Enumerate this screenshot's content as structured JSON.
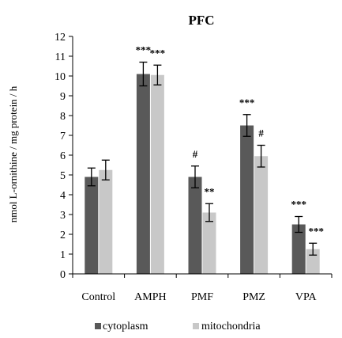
{
  "chart_data": {
    "type": "bar",
    "title": "PFC",
    "xlabel": "",
    "ylabel": "nmol L-ornithine / mg protein / h",
    "ylim": [
      0,
      12
    ],
    "yticks": [
      0,
      1,
      2,
      3,
      4,
      5,
      6,
      7,
      8,
      9,
      10,
      11,
      12
    ],
    "grid": false,
    "legend_position": "bottom",
    "categories": [
      "Control",
      "AMPH",
      "PMF",
      "PMZ",
      "VPA"
    ],
    "series": [
      {
        "name": "cytoplasm",
        "color": "#595959",
        "values": [
          4.9,
          10.1,
          4.9,
          7.5,
          2.5
        ],
        "errors": [
          0.45,
          0.6,
          0.55,
          0.55,
          0.4
        ],
        "annotations": [
          "",
          "***",
          "#",
          "***",
          "***"
        ]
      },
      {
        "name": "mitochondria",
        "color": "#c8c8c8",
        "values": [
          5.25,
          10.05,
          3.1,
          5.95,
          1.25
        ],
        "errors": [
          0.5,
          0.5,
          0.45,
          0.55,
          0.3
        ],
        "annotations": [
          "",
          "***",
          "**",
          "#",
          "***"
        ]
      }
    ]
  }
}
